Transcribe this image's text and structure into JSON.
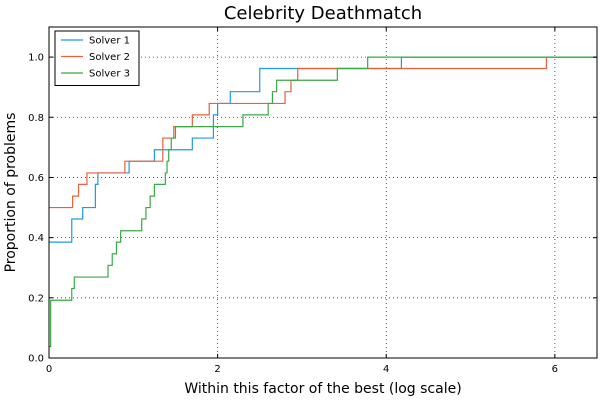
{
  "chart_data": {
    "type": "line",
    "step": true,
    "title": "Celebrity Deathmatch",
    "xlabel": "Within this factor of the best (log scale)",
    "ylabel": "Proportion of problems",
    "xlim": [
      0,
      6.5
    ],
    "ylim": [
      0,
      1.1
    ],
    "xticks": [
      0,
      2,
      4,
      6
    ],
    "yticks": [
      0.0,
      0.2,
      0.4,
      0.6,
      0.8,
      1.0
    ],
    "xtick_labels": [
      "0",
      "2",
      "4",
      "6"
    ],
    "ytick_labels": [
      "0.0",
      "0.2",
      "0.4",
      "0.6",
      "0.8",
      "1.0"
    ],
    "grid": true,
    "legend_position": "top-left",
    "series": [
      {
        "name": "Solver 1",
        "color": "#1f9ae0",
        "points": [
          [
            0,
            0.385
          ],
          [
            0.27,
            0.385
          ],
          [
            0.27,
            0.462
          ],
          [
            0.4,
            0.462
          ],
          [
            0.4,
            0.5
          ],
          [
            0.55,
            0.5
          ],
          [
            0.55,
            0.577
          ],
          [
            0.58,
            0.577
          ],
          [
            0.58,
            0.615
          ],
          [
            0.95,
            0.615
          ],
          [
            0.95,
            0.654
          ],
          [
            1.25,
            0.654
          ],
          [
            1.25,
            0.692
          ],
          [
            1.7,
            0.692
          ],
          [
            1.7,
            0.731
          ],
          [
            1.95,
            0.731
          ],
          [
            1.95,
            0.808
          ],
          [
            2.0,
            0.808
          ],
          [
            2.0,
            0.846
          ],
          [
            2.15,
            0.846
          ],
          [
            2.15,
            0.885
          ],
          [
            2.5,
            0.885
          ],
          [
            2.5,
            0.962
          ],
          [
            4.18,
            0.962
          ],
          [
            4.18,
            1.0
          ],
          [
            6.5,
            1.0
          ]
        ]
      },
      {
        "name": "Solver 2",
        "color": "#e8603c",
        "points": [
          [
            0,
            0.5
          ],
          [
            0.28,
            0.5
          ],
          [
            0.28,
            0.538
          ],
          [
            0.35,
            0.538
          ],
          [
            0.35,
            0.577
          ],
          [
            0.45,
            0.577
          ],
          [
            0.45,
            0.615
          ],
          [
            0.9,
            0.615
          ],
          [
            0.9,
            0.654
          ],
          [
            1.35,
            0.654
          ],
          [
            1.35,
            0.731
          ],
          [
            1.48,
            0.731
          ],
          [
            1.48,
            0.769
          ],
          [
            1.7,
            0.769
          ],
          [
            1.7,
            0.808
          ],
          [
            1.9,
            0.808
          ],
          [
            1.9,
            0.846
          ],
          [
            2.8,
            0.846
          ],
          [
            2.8,
            0.885
          ],
          [
            2.87,
            0.885
          ],
          [
            2.87,
            0.923
          ],
          [
            2.95,
            0.923
          ],
          [
            2.95,
            0.962
          ],
          [
            5.9,
            0.962
          ],
          [
            5.9,
            1.0
          ],
          [
            6.5,
            1.0
          ]
        ]
      },
      {
        "name": "Solver 3",
        "color": "#3aa845",
        "points": [
          [
            0,
            0.038
          ],
          [
            0.02,
            0.038
          ],
          [
            0.02,
            0.192
          ],
          [
            0.27,
            0.192
          ],
          [
            0.27,
            0.231
          ],
          [
            0.3,
            0.231
          ],
          [
            0.3,
            0.269
          ],
          [
            0.7,
            0.269
          ],
          [
            0.7,
            0.308
          ],
          [
            0.75,
            0.308
          ],
          [
            0.75,
            0.346
          ],
          [
            0.8,
            0.346
          ],
          [
            0.8,
            0.385
          ],
          [
            0.85,
            0.385
          ],
          [
            0.85,
            0.423
          ],
          [
            1.1,
            0.423
          ],
          [
            1.1,
            0.462
          ],
          [
            1.15,
            0.462
          ],
          [
            1.15,
            0.5
          ],
          [
            1.2,
            0.5
          ],
          [
            1.2,
            0.538
          ],
          [
            1.25,
            0.538
          ],
          [
            1.25,
            0.577
          ],
          [
            1.38,
            0.577
          ],
          [
            1.38,
            0.615
          ],
          [
            1.4,
            0.615
          ],
          [
            1.4,
            0.654
          ],
          [
            1.42,
            0.654
          ],
          [
            1.42,
            0.692
          ],
          [
            1.45,
            0.692
          ],
          [
            1.45,
            0.731
          ],
          [
            1.5,
            0.731
          ],
          [
            1.5,
            0.769
          ],
          [
            2.3,
            0.769
          ],
          [
            2.3,
            0.808
          ],
          [
            2.6,
            0.808
          ],
          [
            2.6,
            0.846
          ],
          [
            2.65,
            0.846
          ],
          [
            2.65,
            0.885
          ],
          [
            2.7,
            0.885
          ],
          [
            2.7,
            0.923
          ],
          [
            3.42,
            0.923
          ],
          [
            3.42,
            0.962
          ],
          [
            3.78,
            0.962
          ],
          [
            3.78,
            1.0
          ],
          [
            6.5,
            1.0
          ]
        ]
      }
    ]
  }
}
